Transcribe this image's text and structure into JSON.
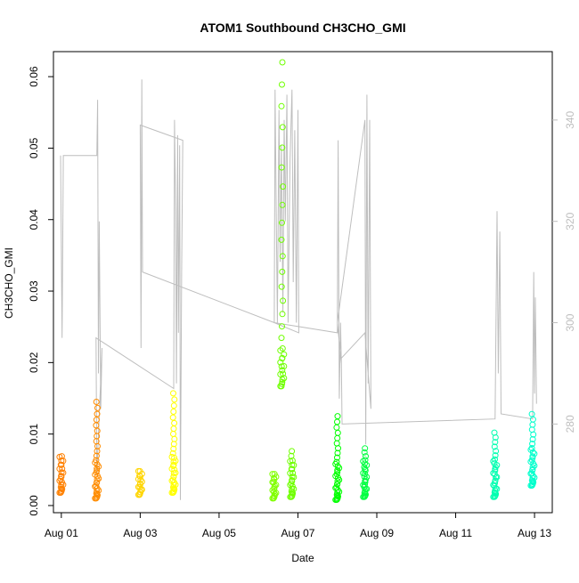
{
  "chart_data": {
    "type": "scatter",
    "title": "ATOM1 Southbound CH3CHO_GMI",
    "xlabel": "Date",
    "ylabel": "CH3CHO_GMI",
    "xlim": [
      -0.2,
      12.45
    ],
    "ylim": [
      -0.001,
      0.0635
    ],
    "y2lim": [
      262.5,
      353.5
    ],
    "x_ticks": [
      {
        "value": 0,
        "label": "Aug 01"
      },
      {
        "value": 2,
        "label": "Aug 03"
      },
      {
        "value": 4,
        "label": "Aug 05"
      },
      {
        "value": 6,
        "label": "Aug 07"
      },
      {
        "value": 8,
        "label": "Aug 09"
      },
      {
        "value": 10,
        "label": "Aug 11"
      },
      {
        "value": 12,
        "label": "Aug 13"
      }
    ],
    "y_ticks": [
      {
        "value": 0.0,
        "label": "0.00"
      },
      {
        "value": 0.01,
        "label": "0.01"
      },
      {
        "value": 0.02,
        "label": "0.02"
      },
      {
        "value": 0.03,
        "label": "0.03"
      },
      {
        "value": 0.04,
        "label": "0.04"
      },
      {
        "value": 0.05,
        "label": "0.05"
      },
      {
        "value": 0.06,
        "label": "0.06"
      }
    ],
    "y2_ticks": [
      {
        "value": 280,
        "label": "280"
      },
      {
        "value": 300,
        "label": "300"
      },
      {
        "value": 320,
        "label": "320"
      },
      {
        "value": 340,
        "label": "340"
      }
    ],
    "clusters": [
      {
        "x": 0.0,
        "ymin": 0.0018,
        "ymax": 0.0069,
        "color": "#ff8000",
        "n": 14
      },
      {
        "x": 0.9,
        "ymin": 0.001,
        "ymax": 0.0145,
        "color": "#ff8c00",
        "n": 26
      },
      {
        "x": 2.0,
        "ymin": 0.0015,
        "ymax": 0.0048,
        "color": "#ffd500",
        "n": 9
      },
      {
        "x": 2.85,
        "ymin": 0.0018,
        "ymax": 0.0157,
        "color": "#ffff00",
        "n": 26
      },
      {
        "x": 5.4,
        "ymin": 0.001,
        "ymax": 0.0044,
        "color": "#80ff00",
        "n": 10
      },
      {
        "x": 5.85,
        "ymin": 0.0012,
        "ymax": 0.0076,
        "color": "#6fff00",
        "n": 16
      },
      {
        "x": 5.6,
        "ymin": 0.0167,
        "ymax": 0.062,
        "color": "#6fff00",
        "n": 24
      },
      {
        "x": 7.0,
        "ymin": 0.0008,
        "ymax": 0.0125,
        "color": "#00ff00",
        "n": 24
      },
      {
        "x": 7.7,
        "ymin": 0.0012,
        "ymax": 0.008,
        "color": "#00ff40",
        "n": 20
      },
      {
        "x": 11.0,
        "ymin": 0.0012,
        "ymax": 0.0102,
        "color": "#00ffb0",
        "n": 22
      },
      {
        "x": 11.95,
        "ymin": 0.0028,
        "ymax": 0.0128,
        "color": "#00ffcc",
        "n": 22
      }
    ],
    "secondary_series": {
      "name": "gray line (right axis)",
      "color": "#bebebe",
      "points": [
        [
          -0.02,
          333
        ],
        [
          0.02,
          297
        ],
        [
          0.05,
          333
        ],
        [
          0.9,
          333
        ],
        [
          0.92,
          344
        ],
        [
          0.94,
          290
        ],
        [
          0.96,
          320
        ],
        [
          1.0,
          283
        ],
        [
          1.03,
          295
        ],
        [
          0.9,
          270
        ],
        [
          0.88,
          297
        ],
        [
          2.85,
          287
        ],
        [
          2.87,
          340
        ],
        [
          2.9,
          322
        ],
        [
          2.92,
          288
        ],
        [
          2.95,
          337
        ],
        [
          2.97,
          298
        ],
        [
          3.0,
          335
        ],
        [
          3.02,
          265
        ],
        [
          3.05,
          310
        ],
        [
          3.08,
          336
        ],
        [
          2.0,
          339
        ],
        [
          2.02,
          295
        ],
        [
          2.04,
          348
        ],
        [
          2.06,
          310
        ],
        [
          5.4,
          300
        ],
        [
          5.42,
          346
        ],
        [
          5.45,
          322
        ],
        [
          5.48,
          300
        ],
        [
          5.52,
          342
        ],
        [
          5.55,
          312
        ],
        [
          5.58,
          335
        ],
        [
          5.62,
          302
        ],
        [
          5.65,
          340
        ],
        [
          5.68,
          320
        ],
        [
          5.72,
          345
        ],
        [
          5.75,
          300
        ],
        [
          5.8,
          332
        ],
        [
          5.85,
          346
        ],
        [
          5.88,
          308
        ],
        [
          5.92,
          338
        ],
        [
          5.96,
          300
        ],
        [
          6.0,
          342
        ],
        [
          6.02,
          298
        ],
        [
          5.4,
          300
        ],
        [
          7.0,
          298
        ],
        [
          7.02,
          336
        ],
        [
          7.05,
          285
        ],
        [
          7.08,
          300
        ],
        [
          7.1,
          292
        ],
        [
          7.0,
          300
        ],
        [
          7.7,
          340
        ],
        [
          7.72,
          276
        ],
        [
          7.75,
          345
        ],
        [
          7.78,
          288
        ],
        [
          7.82,
          340
        ],
        [
          7.85,
          283
        ],
        [
          7.7,
          298
        ],
        [
          7.1,
          293
        ],
        [
          7.12,
          280
        ],
        [
          11.0,
          281
        ],
        [
          11.05,
          322
        ],
        [
          11.08,
          290
        ],
        [
          11.12,
          318
        ],
        [
          11.15,
          282
        ],
        [
          11.95,
          281
        ],
        [
          11.98,
          310
        ],
        [
          12.0,
          286
        ],
        [
          12.02,
          305
        ],
        [
          12.05,
          284
        ]
      ]
    }
  }
}
